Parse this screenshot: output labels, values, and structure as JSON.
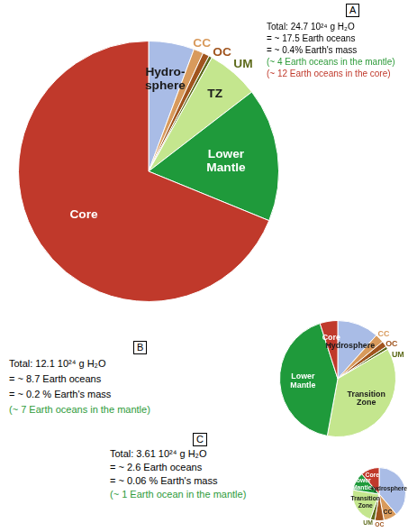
{
  "chart_data": [
    {
      "type": "pie",
      "title": "A",
      "categories": [
        "Hydro-\nsphere",
        "CC",
        "OC",
        "UM",
        "TZ",
        "Lower\nMantle",
        "Core"
      ],
      "values": [
        1.4,
        0.3,
        0.2,
        0.1,
        1.6,
        4.1,
        17.0
      ],
      "colors": [
        "#a9bce6",
        "#d89a5c",
        "#a0541e",
        "#5e6b1c",
        "#c4e68e",
        "#1f9a3b",
        "#c0392b"
      ],
      "annotations": [
        {
          "text": "Total: 24.7 10²⁴ g H₂O",
          "color": "#000000"
        },
        {
          "text": "= ~ 17.5 Earth oceans",
          "color": "#000000"
        },
        {
          "text": "= ~ 0.4% Earth's mass",
          "color": "#000000"
        },
        {
          "text": "(~ 4 Earth oceans in the mantle)",
          "color": "#2e9b3a"
        },
        {
          "text": "(~ 12 Earth oceans in the core)",
          "color": "#c0392b"
        }
      ]
    },
    {
      "type": "pie",
      "title": "B",
      "categories": [
        "Hydrosphere",
        "CC",
        "OC",
        "UM",
        "Transition\nZone",
        "Lower\nMantle",
        "Core"
      ],
      "values": [
        1.4,
        0.3,
        0.2,
        0.1,
        4.4,
        5.1,
        0.6
      ],
      "colors": [
        "#a9bce6",
        "#d89a5c",
        "#a0541e",
        "#5e6b1c",
        "#c4e68e",
        "#1f9a3b",
        "#c0392b"
      ],
      "annotations": [
        {
          "text": "Total: 12.1 10²⁴ g H₂O",
          "color": "#000000"
        },
        {
          "text": "= ~ 8.7 Earth oceans",
          "color": "#000000"
        },
        {
          "text": "= ~ 0.2 % Earth's mass",
          "color": "#000000"
        },
        {
          "text": "(~ 7 Earth oceans in the mantle)",
          "color": "#2e9b3a"
        }
      ]
    },
    {
      "type": "pie",
      "title": "C",
      "categories": [
        "Hydrosphere",
        "CC",
        "OC",
        "UM",
        "Transition\nZone",
        "Lower\nMantle",
        "Core"
      ],
      "values": [
        1.4,
        0.3,
        0.2,
        0.1,
        0.8,
        0.4,
        0.41
      ],
      "colors": [
        "#a9bce6",
        "#d89a5c",
        "#a0541e",
        "#5e6b1c",
        "#c4e68e",
        "#1f9a3b",
        "#c0392b"
      ],
      "annotations": [
        {
          "text": "Total: 3.61 10²⁴ g H₂O",
          "color": "#000000"
        },
        {
          "text": "= ~ 2.6 Earth oceans",
          "color": "#000000"
        },
        {
          "text": "= ~ 0.06 % Earth's mass",
          "color": "#000000"
        },
        {
          "text": "(~ 1 Earth ocean in the mantle)",
          "color": "#2e9b3a"
        }
      ]
    }
  ]
}
